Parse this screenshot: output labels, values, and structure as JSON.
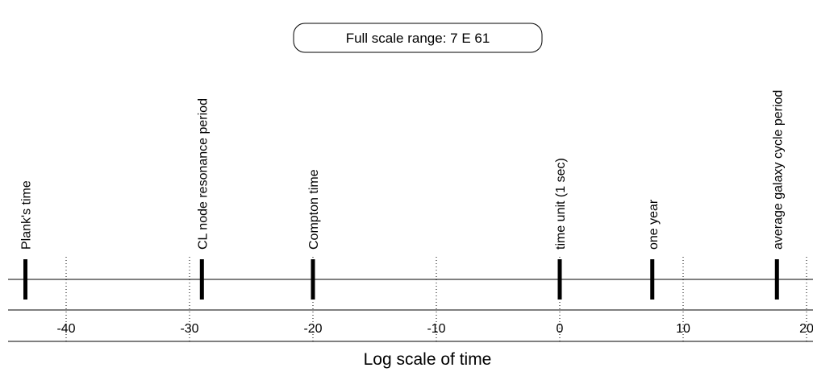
{
  "chart_data": {
    "type": "scatter",
    "title": "Full scale range: 7 E 61",
    "xlabel": "Log scale of time",
    "ylabel": "",
    "xlim": [
      -45.5,
      21
    ],
    "x_ticks": [
      -40,
      -30,
      -20,
      -10,
      0,
      10,
      20
    ],
    "grid": "dotted vertical lines at major ticks",
    "annotations": [
      {
        "label": "Plank's time",
        "x": -43.3
      },
      {
        "label": "CL node resonance period",
        "x": -29
      },
      {
        "label": "Compton time",
        "x": -20
      },
      {
        "label": "time unit (1 sec)",
        "x": 0
      },
      {
        "label": "one year",
        "x": 7.5
      },
      {
        "label": "average galaxy cycle period",
        "x": 17.6
      }
    ]
  }
}
